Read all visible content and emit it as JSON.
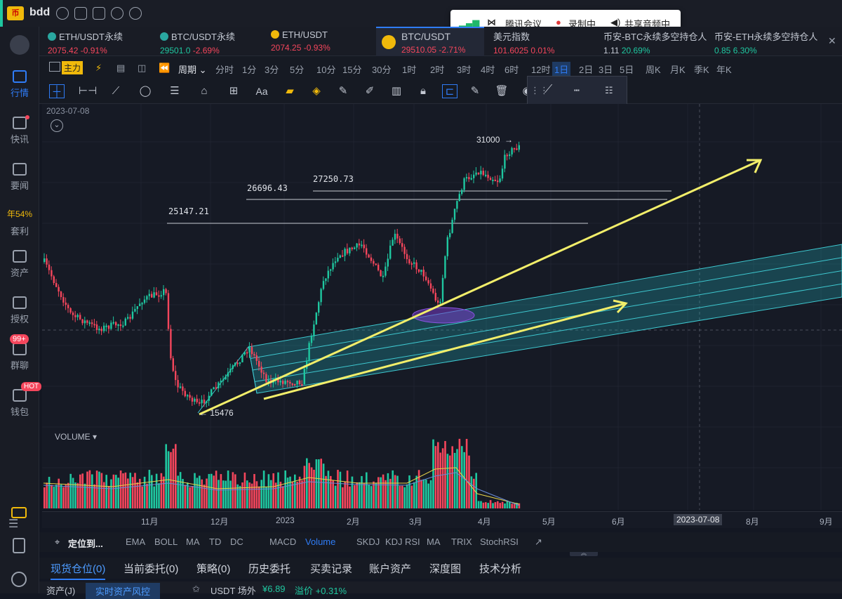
{
  "app": {
    "name": "bdd",
    "logo_text": "币"
  },
  "sidebar": {
    "items": [
      {
        "label": "行情",
        "badge": ""
      },
      {
        "label": "快讯",
        "badge": ""
      },
      {
        "label": "要闻",
        "badge": ""
      },
      {
        "label": "套利",
        "badge": "年54%"
      },
      {
        "label": "资产",
        "badge": ""
      },
      {
        "label": "授权",
        "badge": ""
      },
      {
        "label": "群聊",
        "badge": "99+"
      },
      {
        "label": "钱包",
        "badge": "HOT"
      }
    ]
  },
  "meeting": {
    "app": "腾讯会议",
    "recording": "录制中",
    "audio": "共享音频中"
  },
  "tickers": [
    {
      "name": "ETH/USDT永续",
      "price": "2075.42",
      "change": "-0.91%"
    },
    {
      "name": "BTC/USDT永续",
      "price": "29501.0",
      "change": "-2.69%"
    },
    {
      "name": "ETH/USDT",
      "price": "2074.25",
      "change": "-0.93%"
    },
    {
      "name": "BTC/USDT",
      "price": "29510.05",
      "change": "-2.71%"
    },
    {
      "name": "美元指数",
      "price": "101.6025",
      "change": "0.01%"
    },
    {
      "name": "币安-BTC永续多空持仓人",
      "price": "1.11",
      "change": "20.69%"
    },
    {
      "name": "币安-ETH永续多空持仓人",
      "price": "0.85",
      "change": "6.30%"
    }
  ],
  "periods": {
    "main": "主力",
    "cycle": "周期",
    "items": [
      "分时",
      "1分",
      "3分",
      "5分",
      "10分",
      "15分",
      "30分",
      "1时",
      "2时",
      "3时",
      "4时",
      "6时",
      "12时",
      "1日",
      "2日",
      "3日",
      "5日",
      "周K",
      "月K",
      "季K",
      "年K"
    ],
    "active": "1日"
  },
  "draw_tools": {
    "text_tool": "Aa"
  },
  "chart": {
    "date_label": "2023-07-08",
    "levels": [
      "31000",
      "27250.73",
      "26696.43",
      "25147.21"
    ],
    "low_label": "15476",
    "volume_label": "VOLUME",
    "x_ticks": [
      "11月",
      "12月",
      "2023",
      "2月",
      "3月",
      "4月",
      "5月",
      "6月",
      "2023-07-08",
      "8月",
      "9月"
    ]
  },
  "indicators": {
    "locate": "定位到...",
    "main": [
      "EMA",
      "BOLL",
      "MA",
      "TD",
      "DC"
    ],
    "sub": [
      "MACD",
      "Volume",
      "SKDJ",
      "KDJ",
      "RSI",
      "MA",
      "TRIX",
      "StochRSI"
    ],
    "active": "Volume"
  },
  "bottom_tabs": [
    "现货仓位(0)",
    "当前委托(0)",
    "策略(0)",
    "历史委托",
    "买卖记录",
    "账户资产",
    "深度图",
    "技术分析"
  ],
  "bottom_bar": {
    "asset": "资产(J)",
    "risk": "实时资产风控",
    "usdt": "USDT 场外",
    "price": "¥6.89",
    "premium": "溢价 +0.31%"
  }
}
